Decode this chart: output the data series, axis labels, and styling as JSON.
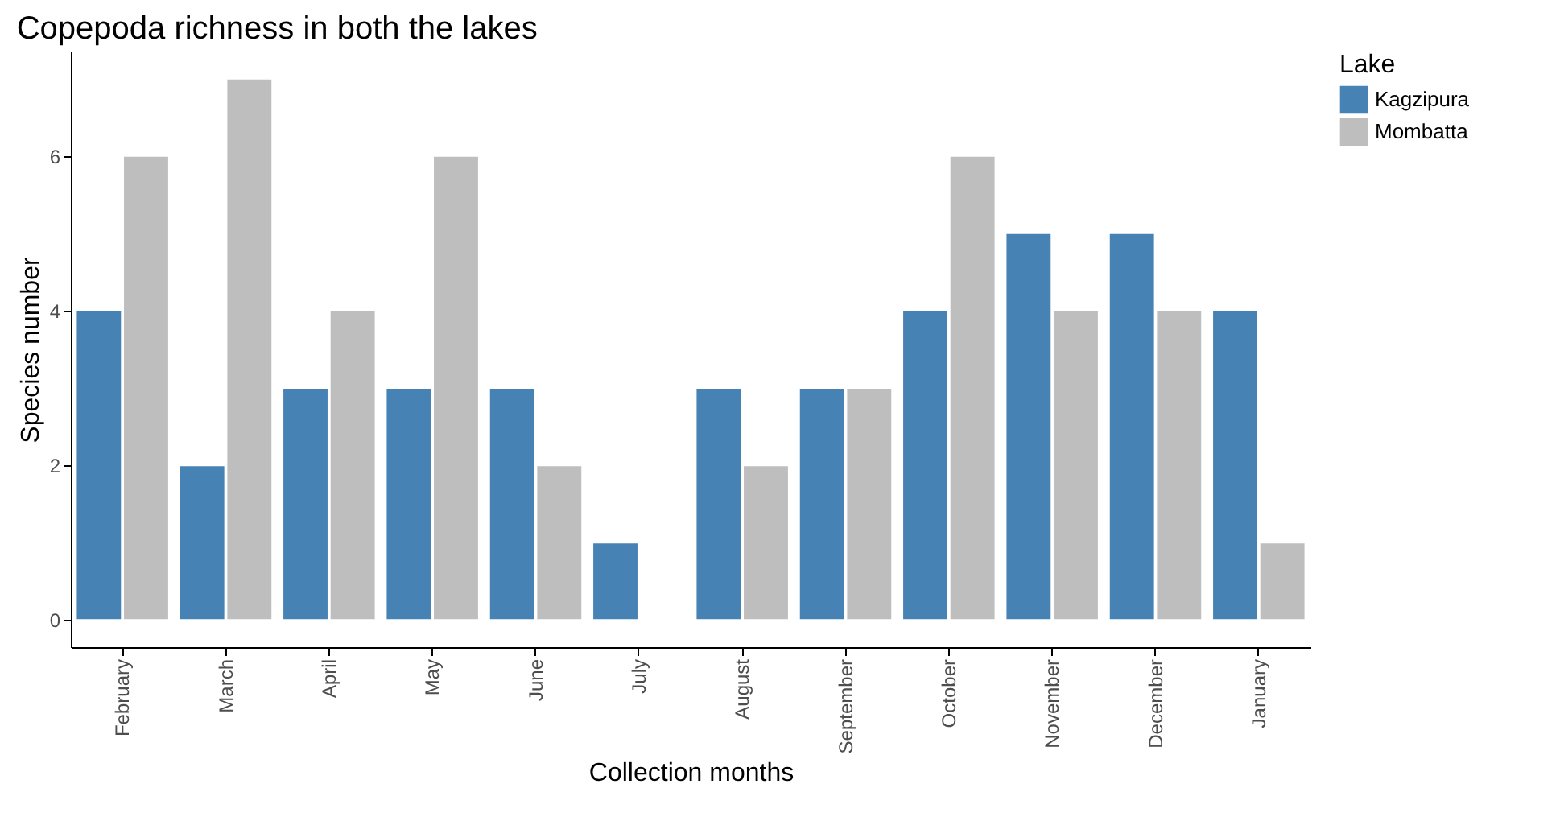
{
  "chart_data": {
    "type": "bar",
    "title": "Copepoda richness in both the lakes",
    "xlabel": "Collection months",
    "ylabel": "Species number",
    "legend_title": "Lake",
    "legend": "right",
    "grid": false,
    "categories": [
      "February",
      "March",
      "April",
      "May",
      "June",
      "July",
      "August",
      "September",
      "October",
      "November",
      "December",
      "January"
    ],
    "series": [
      {
        "name": "Kagzipura",
        "color": "#4682b4",
        "values": [
          4,
          2,
          3,
          3,
          3,
          1,
          3,
          3,
          4,
          5,
          5,
          4
        ]
      },
      {
        "name": "Mombatta",
        "color": "#bebebe",
        "values": [
          6,
          7,
          4,
          6,
          2,
          null,
          2,
          3,
          6,
          4,
          4,
          1
        ]
      }
    ],
    "ylim": [
      -0.35,
      7.35
    ],
    "yticks": [
      0,
      2,
      4,
      6
    ]
  }
}
